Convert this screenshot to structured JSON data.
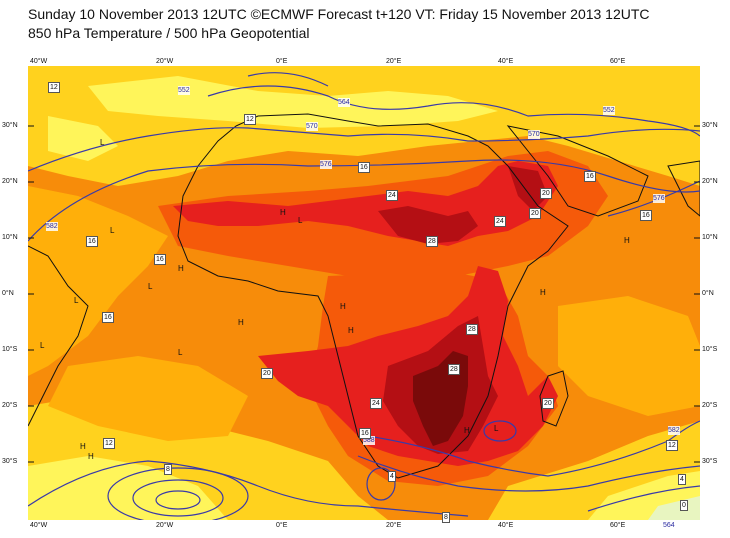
{
  "header": {
    "line1": "Sunday 10 November 2013 12UTC ©ECMWF Forecast t+120 VT: Friday 15 November 2013 12UTC",
    "line2": "850 hPa Temperature / 500 hPa Geopotential"
  },
  "map": {
    "lon_ticks": [
      "40°W",
      "20°W",
      "0°E",
      "20°E",
      "40°E",
      "60°E"
    ],
    "lat_ticks": [
      "30°N",
      "20°N",
      "10°N",
      "0°N",
      "10°S",
      "20°S",
      "30°S"
    ],
    "colors": {
      "yellow_light": "#fff55a",
      "yellow": "#ffd21e",
      "orange_light": "#ffaf0a",
      "orange": "#f78c0a",
      "red_orange": "#f55a0a",
      "red": "#e6201e",
      "dark_red": "#b40f14",
      "maroon": "#7a0a0a",
      "pale_green": "#e8f5c0",
      "contour": "#3a3aa8",
      "coast": "#111111"
    },
    "contour_labels": [
      "552",
      "552",
      "564",
      "564",
      "570",
      "570",
      "576",
      "576",
      "582",
      "582",
      "588"
    ],
    "temp_labels": [
      "12",
      "12",
      "12",
      "16",
      "16",
      "16",
      "16",
      "16",
      "20",
      "20",
      "20",
      "24",
      "24",
      "24",
      "28",
      "28",
      "28",
      "20",
      "16",
      "12",
      "8",
      "8",
      "4",
      "0",
      "16",
      "4"
    ],
    "pressure_marks": [
      "L",
      "L",
      "L",
      "L",
      "L",
      "L",
      "H",
      "H",
      "H",
      "H",
      "H",
      "H",
      "H",
      "H",
      "L",
      "H",
      "H",
      "L"
    ]
  }
}
